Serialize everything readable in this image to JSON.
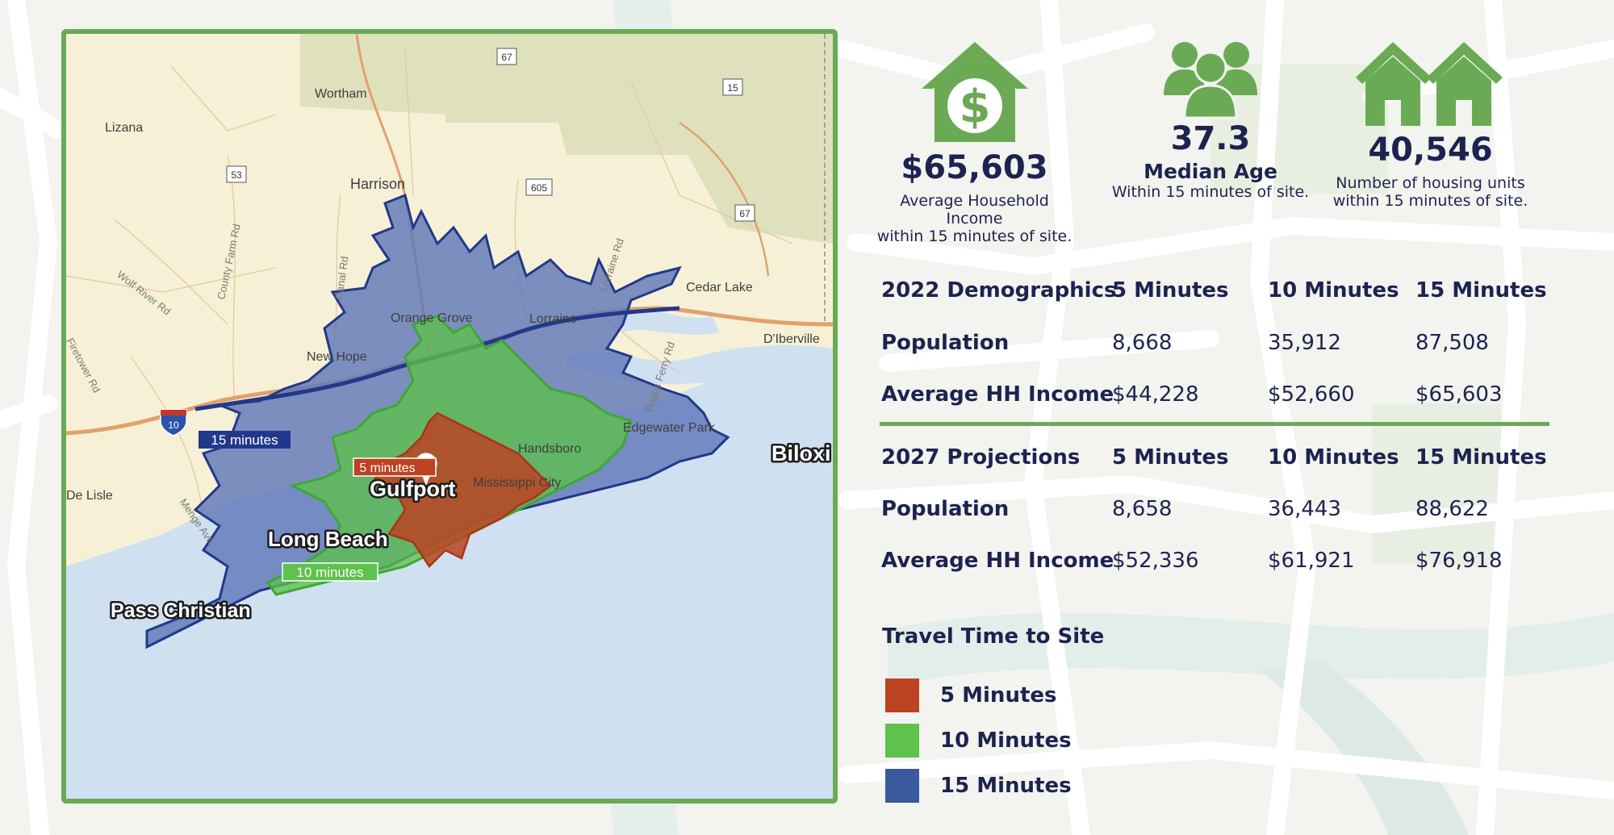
{
  "colors": {
    "accent_green": "#6aaa55",
    "navy_text": "#1d2350",
    "zone_5_min": "#bb4322",
    "zone_10_min": "#5ec24c",
    "zone_15_min": "#3a5aa0",
    "water": "#cfe0f1",
    "land": "#f6f1d6"
  },
  "map": {
    "cities": [
      "Gulfport",
      "Long Beach",
      "Pass Christian",
      "Biloxi"
    ],
    "places": [
      "Wortham",
      "Lizana",
      "Harrison",
      "Cedar Lake",
      "D'Iberville",
      "Orange Grove",
      "New Hope",
      "Lorraine",
      "Handsboro",
      "Edgewater Park",
      "Mississippi City",
      "De Lisle"
    ],
    "roads": [
      "Wolf River Rd",
      "County Farm Rd",
      "Canal Rd",
      "Lorraine Rd",
      "Popps Ferry Rd",
      "Menge Ave",
      "Firetower Rd"
    ],
    "highway_shields": [
      "67",
      "15",
      "53",
      "605",
      "67",
      "10"
    ],
    "zone_badges": {
      "min15": "15 minutes",
      "min10": "10 minutes",
      "min5": "5 minutes"
    },
    "marker_icon": "map-pin-icon"
  },
  "stats": [
    {
      "icon": "house-dollar-icon",
      "value": "$65,603",
      "label": "",
      "desc_line1": "Average Household Income",
      "desc_line2": "within 15 minutes of site."
    },
    {
      "icon": "people-group-icon",
      "value": "37.3",
      "label": "Median Age",
      "desc_line1": "Within 15 minutes of site.",
      "desc_line2": ""
    },
    {
      "icon": "two-houses-icon",
      "value": "40,546",
      "label": "",
      "desc_line1": "Number of housing units",
      "desc_line2": "within 15 minutes of site."
    }
  ],
  "demographics_2022": {
    "header": [
      "2022 Demographics",
      "5 Minutes",
      "10 Minutes",
      "15 Minutes"
    ],
    "rows": [
      [
        "Population",
        "8,668",
        "35,912",
        "87,508"
      ],
      [
        "Average HH Income",
        "$44,228",
        "$52,660",
        "$65,603"
      ]
    ]
  },
  "projections_2027": {
    "header": [
      "2027 Projections",
      "5 Minutes",
      "10 Minutes",
      "15 Minutes"
    ],
    "rows": [
      [
        "Population",
        "8,658",
        "36,443",
        "88,622"
      ],
      [
        "Average HH Income",
        "$52,336",
        "$61,921",
        "$76,918"
      ]
    ]
  },
  "legend": {
    "title": "Travel Time to Site",
    "items": [
      {
        "label": "5 Minutes",
        "color": "#bb4322"
      },
      {
        "label": "10 Minutes",
        "color": "#5ec24c"
      },
      {
        "label": "15 Minutes",
        "color": "#3a5aa0"
      }
    ]
  }
}
